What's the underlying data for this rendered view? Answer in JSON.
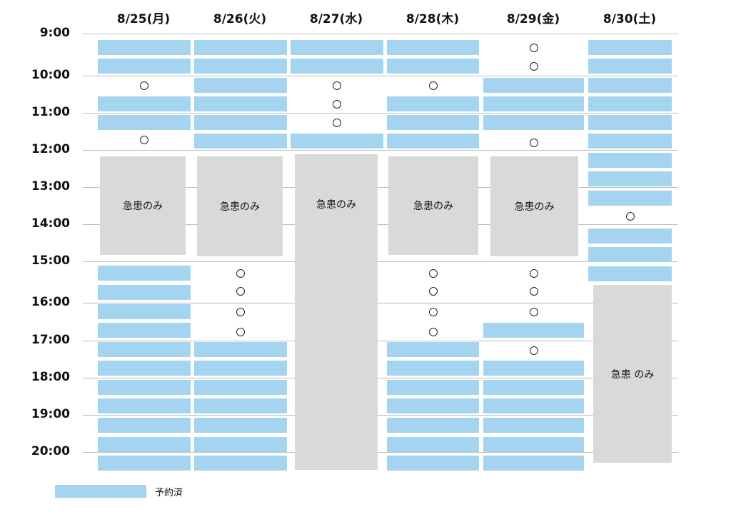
{
  "days": [
    "8/25(月)",
    "8/26(火)",
    "8/27(水)",
    "8/28(木)",
    "8/29(金)",
    "8/30(土)"
  ],
  "times": [
    "9:00",
    "10:00",
    "11:00",
    "12:00",
    "13:00",
    "14:00",
    "15:00",
    "16:00",
    "17:00",
    "18:00",
    "19:00",
    "20:00"
  ],
  "open_mark": "○",
  "closed_label": "急患のみ",
  "closed_label_saturday": "急患 のみ",
  "legend": {
    "label": "予約済"
  },
  "colors": {
    "booked": "#a4d4f0",
    "closed": "#d9d9d9",
    "grid": "#bdbdbd"
  },
  "schedule": [
    {
      "day": "8/25(月)",
      "slots": [
        "booked",
        "booked",
        "open",
        "booked",
        "booked",
        "open",
        "booked",
        "booked",
        "booked",
        "booked",
        "booked",
        "booked",
        "booked",
        "booked",
        "booked",
        "booked",
        "booked"
      ]
    },
    {
      "day": "8/26(火)",
      "slots": [
        "booked",
        "booked",
        "booked",
        "booked",
        "booked",
        "booked",
        "open",
        "open",
        "open",
        "open",
        "booked",
        "booked",
        "booked",
        "booked",
        "booked",
        "booked",
        "booked"
      ]
    },
    {
      "day": "8/27(水)",
      "slots": [
        "booked",
        "booked",
        "open",
        "open",
        "open",
        "booked"
      ]
    },
    {
      "day": "8/28(木)",
      "slots": [
        "booked",
        "booked",
        "open",
        "booked",
        "booked",
        "booked",
        "open",
        "open",
        "open",
        "open",
        "booked",
        "booked",
        "booked",
        "booked",
        "booked",
        "booked",
        "booked"
      ]
    },
    {
      "day": "8/29(金)",
      "slots": [
        "open",
        "open",
        "booked",
        "booked",
        "booked",
        "open",
        "open",
        "open",
        "open",
        "booked",
        "open",
        "booked",
        "booked",
        "booked",
        "booked",
        "booked",
        "booked"
      ]
    },
    {
      "day": "8/30(土)",
      "slots": [
        "booked",
        "booked",
        "booked",
        "booked",
        "booked",
        "booked",
        "booked",
        "booked",
        "booked",
        "open",
        "booked",
        "booked",
        "booked"
      ]
    }
  ]
}
